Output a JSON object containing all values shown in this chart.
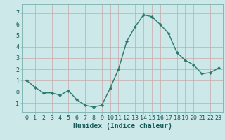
{
  "x": [
    0,
    1,
    2,
    3,
    4,
    5,
    6,
    7,
    8,
    9,
    10,
    11,
    12,
    13,
    14,
    15,
    16,
    17,
    18,
    19,
    20,
    21,
    22,
    23
  ],
  "y": [
    1.0,
    0.4,
    -0.1,
    -0.1,
    -0.3,
    0.1,
    -0.7,
    -1.2,
    -1.35,
    -1.2,
    0.3,
    2.0,
    4.5,
    5.8,
    6.85,
    6.7,
    6.0,
    5.2,
    3.5,
    2.8,
    2.4,
    1.6,
    1.7,
    2.1
  ],
  "line_color": "#2a7a6f",
  "marker": "D",
  "marker_size": 2.2,
  "line_width": 1.0,
  "bg_color": "#cde8e8",
  "grid_color": "#b0d0d0",
  "xlabel": "Humidex (Indice chaleur)",
  "xlabel_fontsize": 7,
  "tick_fontsize": 6,
  "ylim": [
    -1.8,
    7.8
  ],
  "yticks": [
    -1,
    0,
    1,
    2,
    3,
    4,
    5,
    6,
    7
  ],
  "xlim": [
    -0.5,
    23.5
  ],
  "spine_color": "#7aafaf",
  "grid_color_major": "#b8d4d4",
  "grid_color_minor": "#c8e0e0"
}
